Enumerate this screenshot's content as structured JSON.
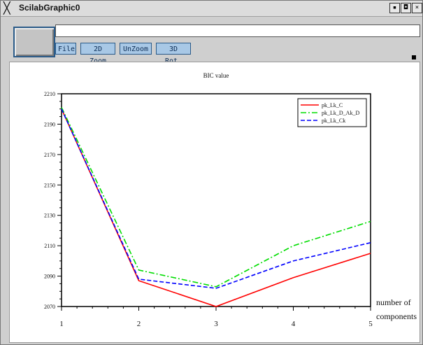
{
  "window": {
    "icon": "x-window-icon",
    "title_icon_glyph": "╳",
    "title": "ScilabGraphic0",
    "controls": [
      "▪",
      "◘",
      "×"
    ]
  },
  "toolbar": {
    "buttons": [
      {
        "label": "File"
      },
      {
        "label": "2D Zoom"
      },
      {
        "label": "UnZoom"
      },
      {
        "label": "3D Rot."
      }
    ],
    "text_field_value": ""
  },
  "chart_data": {
    "type": "line",
    "title": "BIC value",
    "xlabel": "number of components",
    "ylabel": "",
    "x": [
      1,
      2,
      3,
      4,
      5
    ],
    "xlim": [
      1,
      5
    ],
    "ylim": [
      2070,
      2210
    ],
    "x_ticks": [
      "1",
      "2",
      "3",
      "4",
      "5"
    ],
    "y_ticks": [
      "2070",
      "2090",
      "2110",
      "2130",
      "2150",
      "2170",
      "2190",
      "2210"
    ],
    "grid": false,
    "legend_position": "top-right",
    "series": [
      {
        "name": "pk_Lk_C",
        "color": "#ff0000",
        "dash": "solid",
        "values": [
          2200,
          2087,
          2070,
          2089,
          2105
        ]
      },
      {
        "name": "pk_Lk_D_Ak_D",
        "color": "#00dd00",
        "dash": "dashdot",
        "values": [
          2201,
          2094,
          2083,
          2110,
          2126
        ]
      },
      {
        "name": "pk_Lk_Ck",
        "color": "#0000ff",
        "dash": "dash",
        "values": [
          2200,
          2088,
          2082,
          2100,
          2112
        ]
      }
    ]
  }
}
